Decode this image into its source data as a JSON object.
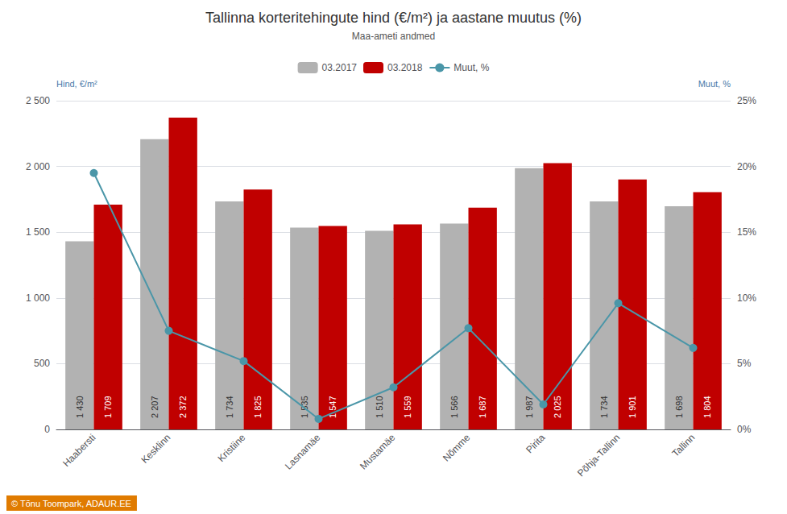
{
  "chart_data": {
    "type": "bar",
    "title": "Tallinna korteritehingute hind (€/m²) ja aastane muutus (%)",
    "subtitle": "Maa-ameti andmed",
    "ylabel": "Hind, €/m²",
    "y2label": "Muut, %",
    "categories": [
      "Haabersti",
      "Kesklinn",
      "Kristiine",
      "Lasnamäe",
      "Mustamäe",
      "Nõmme",
      "Pirita",
      "Põhja-Tallinn",
      "Tallinn"
    ],
    "series": [
      {
        "name": "03.2017",
        "color": "#b2b2b2",
        "data_labels": true,
        "values": [
          1430,
          2207,
          1734,
          1535,
          1510,
          1566,
          1987,
          1734,
          1698
        ],
        "value_labels": [
          "1 430",
          "2 207",
          "1 734",
          "1 535",
          "1 510",
          "1 566",
          "1 987",
          "1 734",
          "1 698"
        ]
      },
      {
        "name": "03.2018",
        "color": "#c00000",
        "data_labels": true,
        "values": [
          1709,
          2372,
          1825,
          1547,
          1559,
          1687,
          2025,
          1901,
          1804
        ],
        "value_labels": [
          "1 709",
          "2 372",
          "1 825",
          "1 547",
          "1 559",
          "1 687",
          "2 025",
          "1 901",
          "1 804"
        ]
      },
      {
        "name": "Muut, %",
        "type": "line",
        "color": "#4a96a8",
        "axis": "y2",
        "marker": "circle",
        "values": [
          19.5,
          7.5,
          5.2,
          0.8,
          3.2,
          7.7,
          1.9,
          9.6,
          6.2
        ]
      }
    ],
    "ylim": [
      0,
      2500
    ],
    "yticks": [
      0,
      500,
      {
        "value": 1000,
        "label": "1 000"
      },
      {
        "value": 1500,
        "label": "1 500"
      },
      {
        "value": 2000,
        "label": "2 000"
      },
      {
        "value": 2500,
        "label": "2 500"
      }
    ],
    "y2lim": [
      0,
      25
    ],
    "y2ticks": [
      {
        "value": 0,
        "label": "0%"
      },
      {
        "value": 5,
        "label": "5%"
      },
      {
        "value": 10,
        "label": "10%"
      },
      {
        "value": 15,
        "label": "15%"
      },
      {
        "value": 20,
        "label": "20%"
      },
      {
        "value": 25,
        "label": "25%"
      }
    ],
    "grid": true,
    "legend": "top",
    "annotations": [
      {
        "text": "© Tõnu Toompark, ADAUR.EE",
        "color": "#e07b00"
      }
    ]
  }
}
